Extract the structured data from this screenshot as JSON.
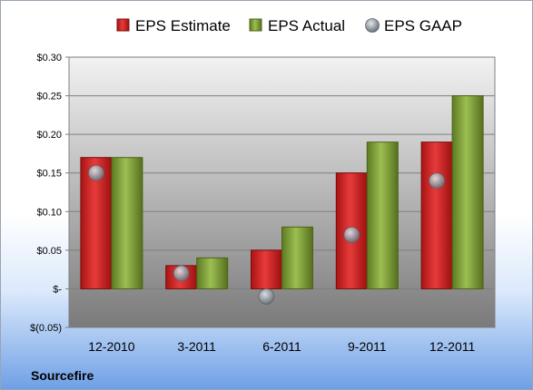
{
  "company": "Sourcefire",
  "chart_data": {
    "type": "bar",
    "categories": [
      "12-2010",
      "3-2011",
      "6-2011",
      "9-2011",
      "12-2011"
    ],
    "series": [
      {
        "name": "EPS Estimate",
        "type": "bar",
        "color": "#d42020",
        "values": [
          0.17,
          0.03,
          0.05,
          0.15,
          0.19
        ]
      },
      {
        "name": "EPS Actual",
        "type": "bar",
        "color": "#7d9f35",
        "values": [
          0.17,
          0.04,
          0.08,
          0.19,
          0.25
        ]
      },
      {
        "name": "EPS GAAP",
        "type": "marker",
        "color": "#9aa0a8",
        "values": [
          0.15,
          0.02,
          -0.01,
          0.07,
          0.14
        ]
      }
    ],
    "ylim": [
      -0.05,
      0.3
    ],
    "yticks": [
      {
        "value": 0.3,
        "label": "$0.30"
      },
      {
        "value": 0.25,
        "label": "$0.25"
      },
      {
        "value": 0.2,
        "label": "$0.20"
      },
      {
        "value": 0.15,
        "label": "$0.15"
      },
      {
        "value": 0.1,
        "label": "$0.10"
      },
      {
        "value": 0.05,
        "label": "$0.05"
      },
      {
        "value": 0.0,
        "label": "$-"
      },
      {
        "value": -0.05,
        "label": "$(0.05)"
      }
    ],
    "grid": true,
    "legend_position": "top"
  }
}
